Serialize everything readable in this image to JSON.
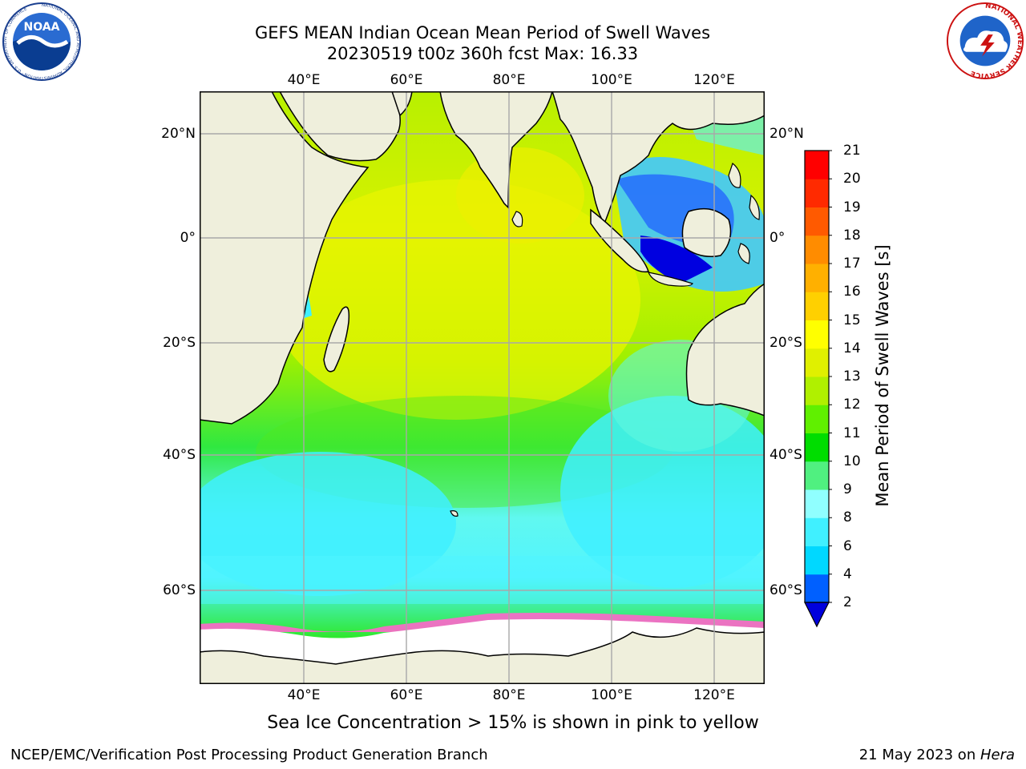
{
  "title": {
    "line1": "GEFS MEAN Indian Ocean Mean Period of Swell Waves",
    "line2": "20230519 t00z 360h fcst   Max: 16.33"
  },
  "logos": {
    "left": "NOAA",
    "left_ring_text": "NATIONAL OCEANIC AND ATMOSPHERIC ADMINISTRATION · U.S. DEPARTMENT OF COMMERCE",
    "right_ring_text": "NATIONAL WEATHER SERVICE"
  },
  "map": {
    "lon_ticks": [
      "40°E",
      "60°E",
      "80°E",
      "100°E",
      "120°E"
    ],
    "lat_ticks": [
      "20°N",
      "0°",
      "20°S",
      "40°S",
      "60°S"
    ]
  },
  "colorbar": {
    "label": "Mean Period of Swell Waves [s]",
    "ticks": [
      "2",
      "4",
      "6",
      "8",
      "9",
      "10",
      "11",
      "12",
      "13",
      "14",
      "15",
      "16",
      "17",
      "18",
      "19",
      "20",
      "21"
    ],
    "colors": [
      "#0000dd",
      "#0060ff",
      "#00d8ff",
      "#40f0ff",
      "#90ffff",
      "#50f080",
      "#00dd00",
      "#60f000",
      "#b0f000",
      "#e0f000",
      "#ffff00",
      "#ffd000",
      "#ffb000",
      "#ff8c00",
      "#ff5a00",
      "#ff2a00",
      "#ff0000"
    ]
  },
  "note": "Sea Ice Concentration > 15% is shown in pink to yellow",
  "footer": {
    "left": "NCEP/EMC/Verification Post Processing Product Generation Branch",
    "right_prefix": "21 May 2023 on ",
    "right_machine": "Hera"
  }
}
